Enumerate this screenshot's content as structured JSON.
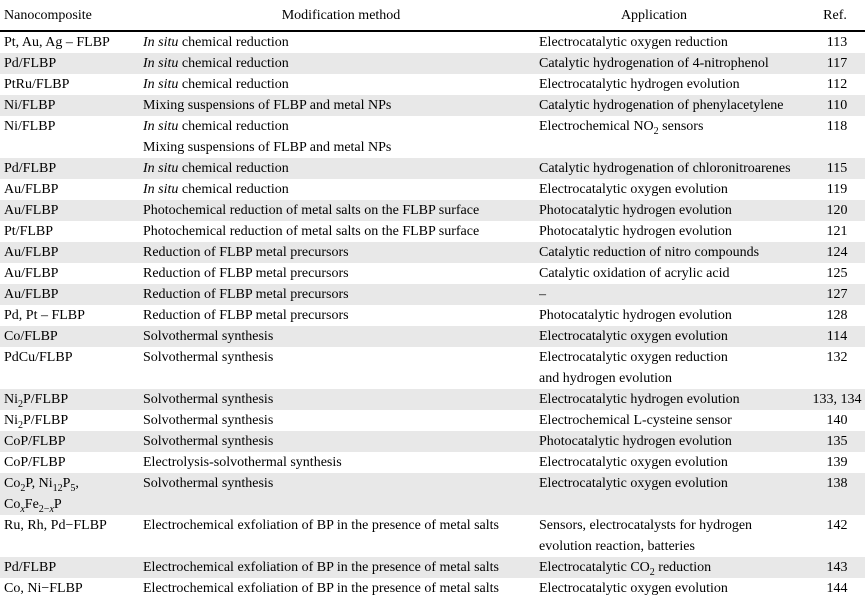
{
  "table": {
    "colors": {
      "stripe": "#e8e8e8",
      "rule": "#000000",
      "text": "#000000",
      "background": "#ffffff"
    },
    "columns": [
      "Nanocomposite",
      "Modification method",
      "Application",
      "Ref."
    ],
    "rows": [
      {
        "name": "Pt, Au, Ag – FLBP",
        "method": "*In situ* chemical reduction",
        "application": "Electrocatalytic oxygen reduction",
        "ref": "113"
      },
      {
        "name": "Pd/FLBP",
        "method": "*In situ* chemical reduction",
        "application": "Catalytic hydrogenation of 4-nitrophenol",
        "ref": "117"
      },
      {
        "name": "PtRu/FLBP",
        "method": "*In situ* chemical reduction",
        "application": "Electrocatalytic hydrogen evolution",
        "ref": "112"
      },
      {
        "name": "Ni/FLBP",
        "method": "Mixing suspensions of FLBP and metal NPs",
        "application": "Catalytic hydrogenation of phenylacetylene",
        "ref": "110"
      },
      {
        "name": "Ni/FLBP",
        "method": "*In situ* chemical reduction\nMixing suspensions of FLBP and metal NPs",
        "application": "Electrochemical NO~2~ sensors",
        "ref": "118"
      },
      {
        "name": "Pd/FLBP",
        "method": "*In situ* chemical reduction",
        "application": "Catalytic hydrogenation of chloronitroarenes",
        "ref": "115"
      },
      {
        "name": "Au/FLBP",
        "method": "*In situ* chemical reduction",
        "application": "Electrocatalytic oxygen evolution",
        "ref": "119"
      },
      {
        "name": "Au/FLBP",
        "method": "Photochemical reduction of metal salts on the FLBP surface",
        "application": "Photocatalytic hydrogen evolution",
        "ref": "120"
      },
      {
        "name": "Pt/FLBP",
        "method": "Photochemical reduction of metal salts on the FLBP surface",
        "application": "Photocatalytic hydrogen evolution",
        "ref": "121"
      },
      {
        "name": "Au/FLBP",
        "method": "Reduction of FLBP metal precursors",
        "application": "Catalytic reduction of nitro compounds",
        "ref": "124"
      },
      {
        "name": "Au/FLBP",
        "method": "Reduction of FLBP metal precursors",
        "application": "Catalytic oxidation of acrylic acid",
        "ref": "125"
      },
      {
        "name": "Au/FLBP",
        "method": "Reduction of FLBP metal precursors",
        "application": "–",
        "ref": "127"
      },
      {
        "name": "Pd, Pt – FLBP",
        "method": "Reduction of FLBP metal precursors",
        "application": "Photocatalytic hydrogen evolution",
        "ref": "128"
      },
      {
        "name": "Co/FLBP",
        "method": "Solvothermal synthesis",
        "application": "Electrocatalytic oxygen evolution",
        "ref": "114"
      },
      {
        "name": "PdCu/FLBP",
        "method": "Solvothermal synthesis",
        "application": "Electrocatalytic oxygen reduction\nand hydrogen evolution",
        "ref": "132"
      },
      {
        "name": "Ni~2~P/FLBP",
        "method": "Solvothermal synthesis",
        "application": "Electrocatalytic hydrogen evolution",
        "ref": "133, 134"
      },
      {
        "name": "Ni~2~P/FLBP",
        "method": "Solvothermal synthesis",
        "application": "Electrochemical L-cysteine sensor",
        "ref": "140"
      },
      {
        "name": "CoP/FLBP",
        "method": "Solvothermal synthesis",
        "application": "Photocatalytic hydrogen evolution",
        "ref": "135"
      },
      {
        "name": "CoP/FLBP",
        "method": "Electrolysis-solvothermal synthesis",
        "application": "Electrocatalytic oxygen evolution",
        "ref": "139"
      },
      {
        "name": "Co~2~P, Ni~12~P~5~,\nCo~*x*~Fe~2−*x*~P",
        "method": "Solvothermal synthesis",
        "application": "Electrocatalytic oxygen evolution",
        "ref": "138"
      },
      {
        "name": "Ru, Rh, Pd−FLBP",
        "method": "Electrochemical exfoliation of BP in the presence of metal salts",
        "application": "Sensors, electrocatalysts for hydrogen\nevolution reaction, batteries",
        "ref": "142"
      },
      {
        "name": "Pd/FLBP",
        "method": "Electrochemical exfoliation of BP in the presence of metal salts",
        "application": "Electrocatalytic CO~2~ reduction",
        "ref": "143"
      },
      {
        "name": "Co, Ni−FLBP",
        "method": "Electrochemical exfoliation of BP in the presence of metal salts",
        "application": "Electrocatalytic oxygen evolution",
        "ref": "144"
      }
    ]
  }
}
